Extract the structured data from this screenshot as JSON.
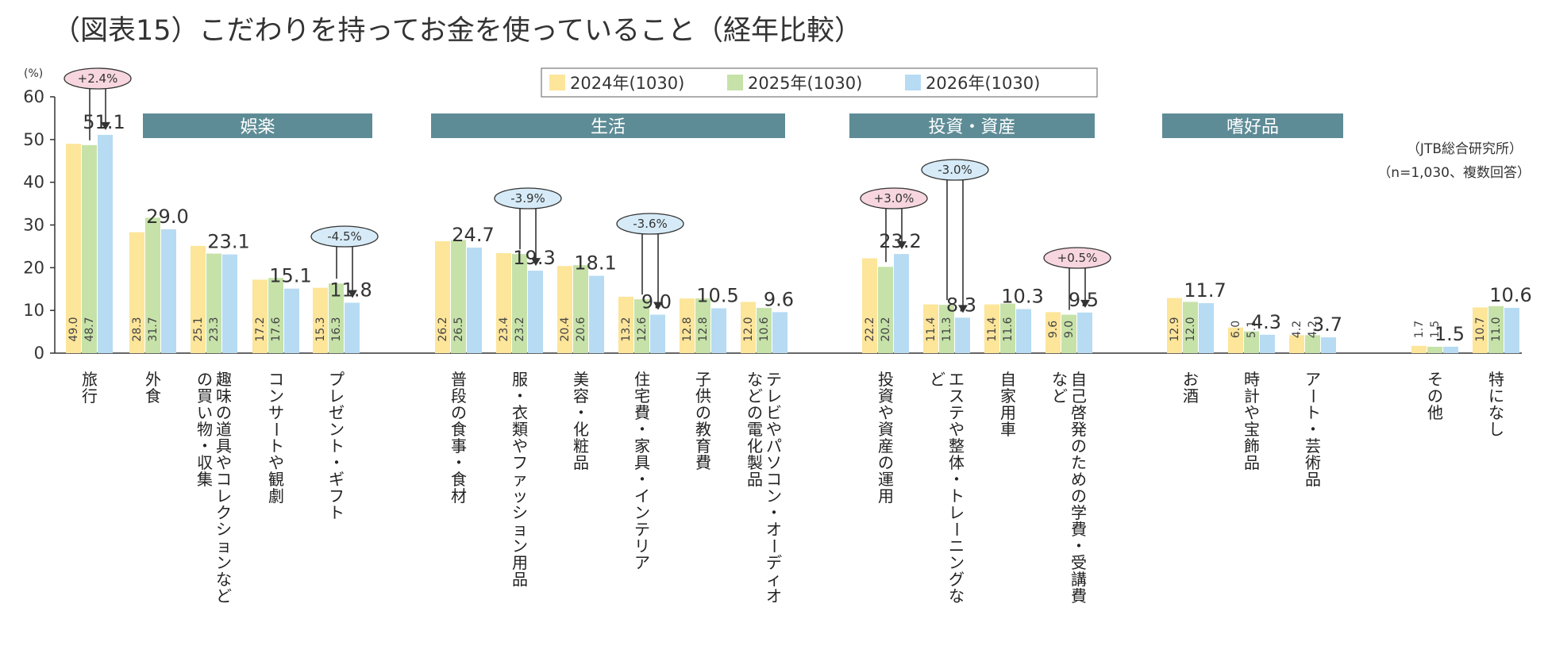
{
  "chart_data": {
    "type": "bar",
    "title": "（図表15）こだわりを持ってお金を使っていること（経年比較）",
    "source_lines": [
      "（JTB総合研究所）",
      "（n=1,030、複数回答）"
    ],
    "y_unit_label": "(%)",
    "ylim": [
      0,
      60
    ],
    "y_ticks": [
      "0",
      "10",
      "20",
      "30",
      "40",
      "50",
      "60"
    ],
    "legend": [
      "2024年(1030)",
      "2025年(1030)",
      "2026年(1030)"
    ],
    "colors": [
      "#fde59a",
      "#c6e2a9",
      "#b7dbf3"
    ],
    "group_header_color": "#5e8c96",
    "groups": [
      {
        "label": "娯楽",
        "first": 0,
        "last": 4
      },
      {
        "label": "生活",
        "first": 5,
        "last": 10
      },
      {
        "label": "投資・資産",
        "first": 11,
        "last": 14
      },
      {
        "label": "嗜好品",
        "first": 15,
        "last": 17
      }
    ],
    "categories": [
      "旅行",
      "外食",
      "趣味の道具やコレクションなどの買い物・収集",
      "コンサートや観劇",
      "プレゼント・ギフト",
      "普段の食事・食材",
      "服・衣類やファッション用品",
      "美容・化粧品",
      "住宅費・家具・インテリア",
      "子供の教育費",
      "テレビやパソコン・オーディオなどの電化製品",
      "投資や資産の運用",
      "エステや整体・トレーニングなど",
      "自家用車",
      "自己啓発のための学費・受講費など",
      "お酒",
      "時計や宝飾品",
      "アート・芸術品",
      "その他",
      "特になし"
    ],
    "series": [
      {
        "name": "2024年(1030)",
        "values": [
          49.0,
          28.3,
          25.1,
          17.2,
          15.3,
          26.2,
          23.4,
          20.4,
          13.2,
          12.8,
          12.0,
          22.2,
          11.4,
          11.4,
          9.6,
          12.9,
          6.0,
          4.2,
          1.7,
          10.7
        ]
      },
      {
        "name": "2025年(1030)",
        "values": [
          48.7,
          31.7,
          23.3,
          17.6,
          16.3,
          26.5,
          23.2,
          20.6,
          12.6,
          12.8,
          10.6,
          20.2,
          11.3,
          11.6,
          9.0,
          12.0,
          5.1,
          4.2,
          1.5,
          11.0
        ]
      },
      {
        "name": "2026年(1030)",
        "values": [
          51.1,
          29.0,
          23.1,
          15.1,
          11.8,
          24.7,
          19.3,
          18.1,
          9.0,
          10.5,
          9.6,
          23.2,
          8.3,
          10.3,
          9.5,
          11.7,
          4.3,
          3.7,
          1.5,
          10.6
        ]
      }
    ],
    "top_labels": [
      "51.1",
      "29.0",
      "23.1",
      "15.1",
      "11.8",
      "24.7",
      "19.3",
      "18.1",
      "9.0",
      "10.5",
      "9.6",
      "23.2",
      "8.3",
      "10.3",
      "9.5",
      "11.7",
      "4.3",
      "3.7",
      "1.5",
      "10.6"
    ],
    "inside_labels_2024": [
      "49.0",
      "28.3",
      "25.1",
      "17.2",
      "15.3",
      "26.2",
      "23.4",
      "20.4",
      "13.2",
      "12.8",
      "12.0",
      "22.2",
      "11.4",
      "11.4",
      "9.6",
      "12.9",
      "6.0",
      "4.2",
      "1.7",
      "10.7"
    ],
    "inside_labels_2025": [
      "48.7",
      "31.7",
      "23.3",
      "17.6",
      "16.3",
      "26.5",
      "23.2",
      "20.6",
      "12.6",
      "12.8",
      "10.6",
      "20.2",
      "11.3",
      "11.6",
      "9.0",
      "12.0",
      "5.1",
      "4.2",
      "1.5",
      "11.0"
    ],
    "change_annotations": [
      {
        "category_index": 0,
        "text": "+2.4%",
        "direction": "up"
      },
      {
        "category_index": 4,
        "text": "-4.5%",
        "direction": "down"
      },
      {
        "category_index": 6,
        "text": "-3.9%",
        "direction": "down"
      },
      {
        "category_index": 8,
        "text": "-3.6%",
        "direction": "down"
      },
      {
        "category_index": 11,
        "text": "+3.0%",
        "direction": "up"
      },
      {
        "category_index": 12,
        "text": "-3.0%",
        "direction": "down"
      },
      {
        "category_index": 14,
        "text": "+0.5%",
        "direction": "up"
      }
    ]
  }
}
